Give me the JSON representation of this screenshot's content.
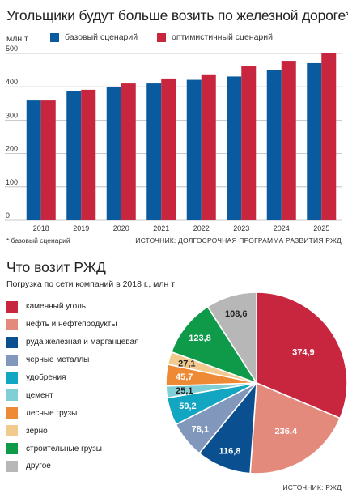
{
  "chart1": {
    "title": "Угольщики будут больше возить по железной дороге*",
    "unit": "млн т",
    "note": "* базовый сценарий",
    "source": "ИСТОЧНИК: ДОЛГОСРОЧНАЯ ПРОГРАММА РАЗВИТИЯ РЖД",
    "colors": {
      "base": "#0a5aa0",
      "optimistic": "#c8253f"
    }
  },
  "chart2": {
    "title": "Что возит РЖД",
    "subtitle": "Погрузка по сети компаний в 2018 г., млн т",
    "source": "ИСТОЧНИК: РЖД"
  },
  "chart_data": [
    {
      "type": "bar",
      "title": "Угольщики будут больше возить по железной дороге*",
      "ylabel": "млн т",
      "xlabel": "",
      "ylim": [
        0,
        500
      ],
      "yticks": [
        0,
        100,
        200,
        300,
        400,
        500
      ],
      "grid": true,
      "legend": "top",
      "categories": [
        "2018",
        "2019",
        "2020",
        "2021",
        "2022",
        "2023",
        "2024",
        "2025"
      ],
      "series": [
        {
          "name": "базовый сценарий",
          "color": "#0a5aa0",
          "values": [
            359,
            387,
            400,
            410,
            421,
            431,
            451,
            471
          ]
        },
        {
          "name": "оптимистичный сценарий",
          "color": "#c8253f",
          "values": [
            359,
            391,
            410,
            425,
            435,
            462,
            478,
            500
          ]
        }
      ]
    },
    {
      "type": "pie",
      "title": "Что возит РЖД",
      "subtitle": "Погрузка по сети компаний в 2018 г., млн т",
      "legend": "left",
      "slices": [
        {
          "label": "каменный уголь",
          "value": 374.9,
          "display": "374,9",
          "color": "#c8253f"
        },
        {
          "label": "нефть и нефтепродукты",
          "value": 236.4,
          "display": "236,4",
          "color": "#e48a7c"
        },
        {
          "label": "руда железная и марганцевая",
          "value": 116.8,
          "display": "116,8",
          "color": "#0a4f8f"
        },
        {
          "label": "черные металлы",
          "value": 78.1,
          "display": "78,1",
          "color": "#8197bb"
        },
        {
          "label": "удобрения",
          "value": 59.2,
          "display": "59,2",
          "color": "#13a6c2"
        },
        {
          "label": "цемент",
          "value": 25.1,
          "display": "25,1",
          "color": "#80cfd7"
        },
        {
          "label": "лесные грузы",
          "value": 45.7,
          "display": "45,7",
          "color": "#ee8a36"
        },
        {
          "label": "зерно",
          "value": 27.1,
          "display": "27,1",
          "color": "#f3ca8e"
        },
        {
          "label": "строительные грузы",
          "value": 123.8,
          "display": "123,8",
          "color": "#0f9a4a"
        },
        {
          "label": "другое",
          "value": 108.6,
          "display": "108,6",
          "color": "#b7b7b7"
        }
      ]
    }
  ]
}
